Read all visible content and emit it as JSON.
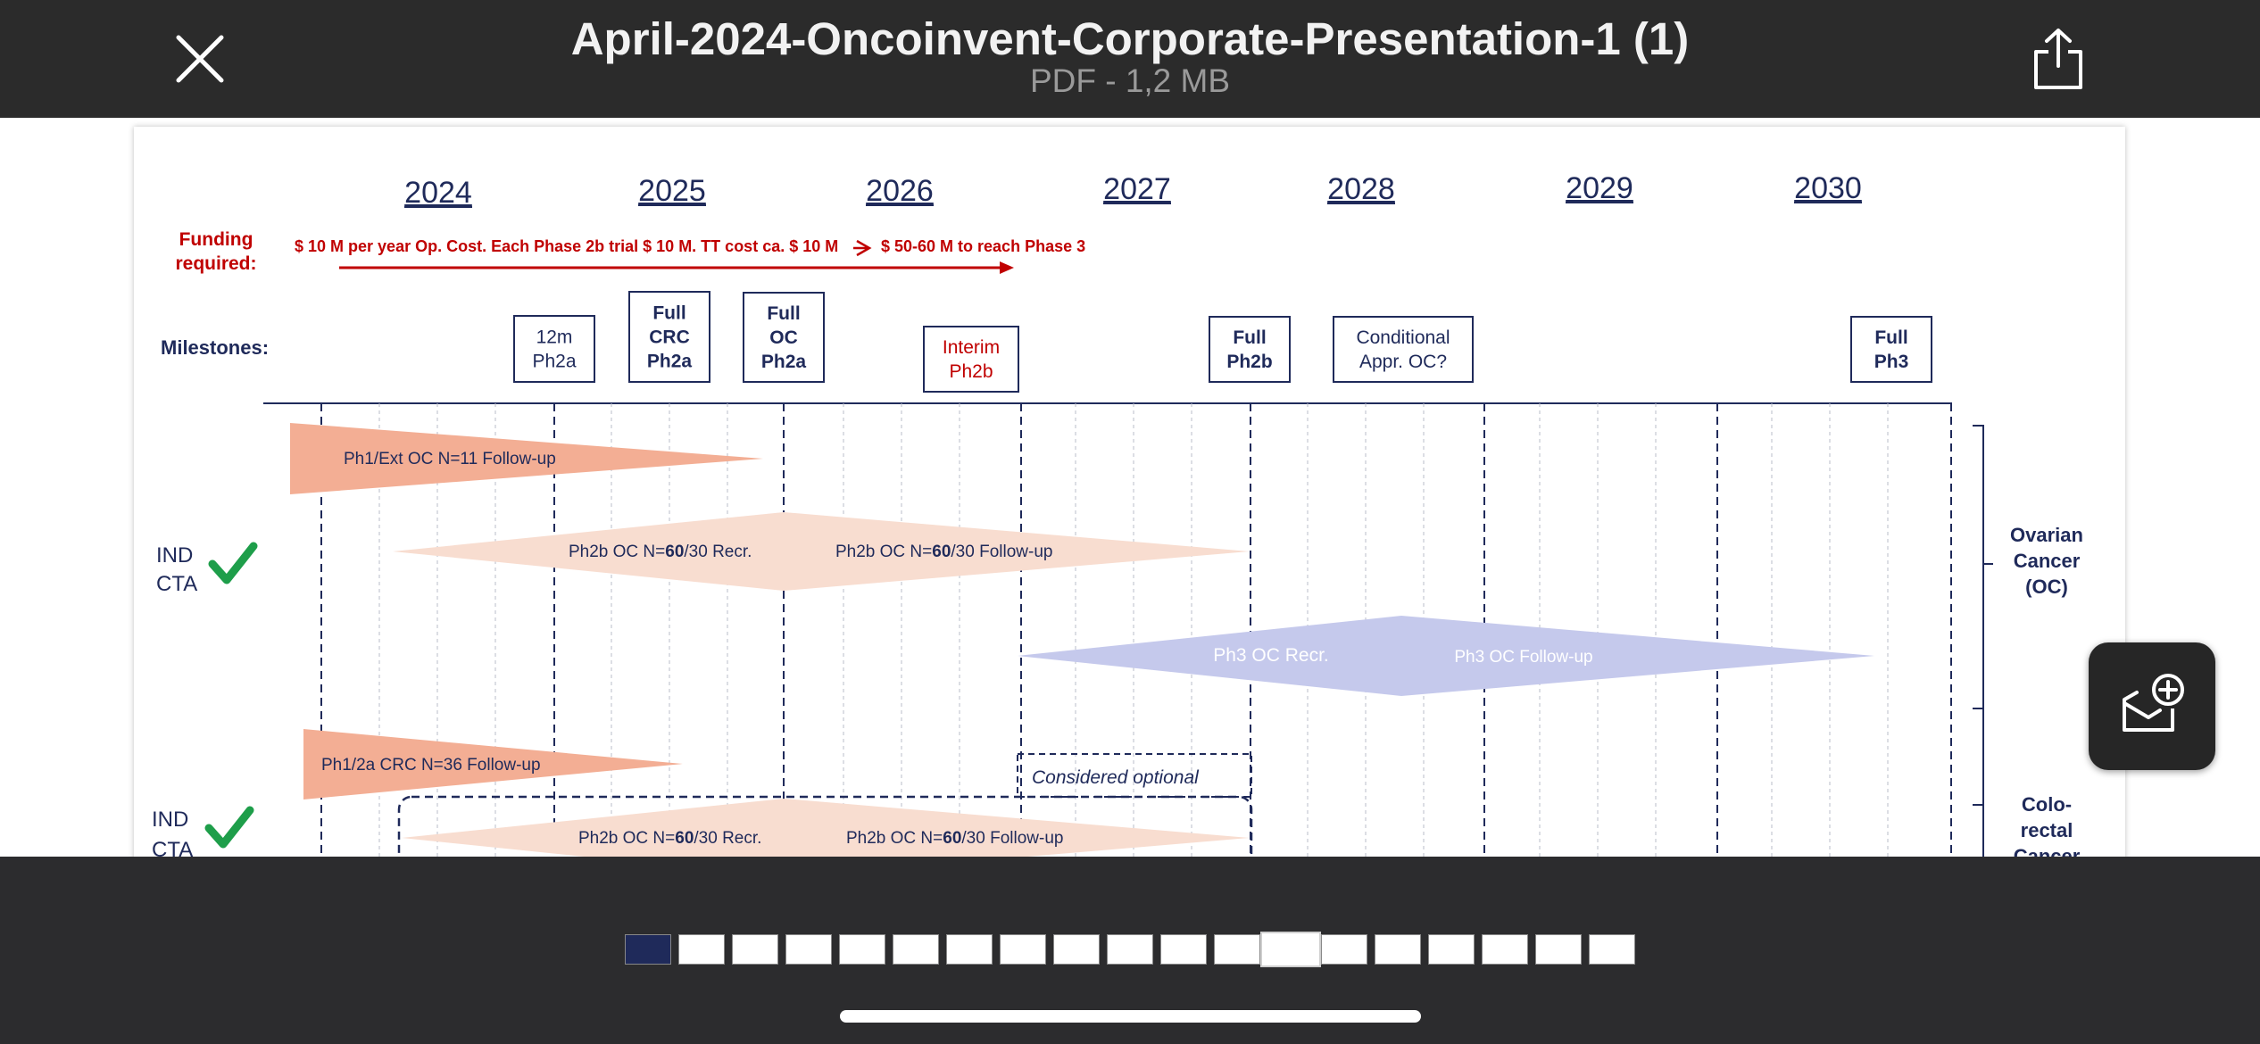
{
  "header": {
    "title": "April-2024-Oncoinvent-Corporate-Presentation-1 (1)",
    "subtitle": "PDF - 1,2 MB"
  },
  "icons": {
    "close": "close-icon",
    "share": "share-icon",
    "fab": "envelope-plus-icon"
  },
  "slide": {
    "years": [
      "2024",
      "2025",
      "2026",
      "2027",
      "2028",
      "2029",
      "2030"
    ],
    "funding_label_1": "Funding",
    "funding_label_2": "required:",
    "funding_text_1": "$ 10 M per year Op. Cost. Each Phase 2b trial $ 10 M. TT cost ca. $ 10 M",
    "funding_text_2": "$ 50-60 M to reach Phase 3",
    "milestones_label": "Milestones:",
    "milestones": [
      {
        "lines": [
          "12m",
          "Ph2a"
        ],
        "bold": false,
        "color": "#1f2a5a"
      },
      {
        "lines": [
          "Full",
          "CRC",
          "Ph2a"
        ],
        "bold": true,
        "color": "#1f2a5a"
      },
      {
        "lines": [
          "Full",
          "OC",
          "Ph2a"
        ],
        "bold": true,
        "color": "#1f2a5a"
      },
      {
        "lines": [
          "Interim",
          "Ph2b"
        ],
        "bold": false,
        "color": "#c00000"
      },
      {
        "lines": [
          "Full",
          "Ph2b"
        ],
        "bold": true,
        "color": "#1f2a5a"
      },
      {
        "lines": [
          "Conditional",
          "Appr. OC?"
        ],
        "bold": false,
        "color": "#1f2a5a"
      },
      {
        "lines": [
          "Full",
          "Ph3"
        ],
        "bold": true,
        "color": "#1f2a5a"
      }
    ],
    "bars": {
      "oc_followup": "Ph1/Ext OC N=11  Follow-up",
      "ph2b_oc_recr_a": "Ph2b OC N=",
      "ph2b_oc_recr_b": "60",
      "ph2b_oc_recr_c": "/30 Recr.",
      "ph2b_oc_fu_a": "Ph2b OC N=",
      "ph2b_oc_fu_b": "60",
      "ph2b_oc_fu_c": "/30 Follow-up",
      "ph3_recr": "Ph3 OC Recr.",
      "ph3_fu": "Ph3 OC  Follow-up",
      "crc_followup": "Ph1/2a CRC N=36 Follow-up",
      "considered_optional": "Considered optional",
      "ph2b_crc_recr_a": "Ph2b OC N=",
      "ph2b_crc_recr_b": "60",
      "ph2b_crc_recr_c": "/30 Recr.",
      "ph2b_crc_fu_a": "Ph2b OC N=",
      "ph2b_crc_fu_b": "60",
      "ph2b_crc_fu_c": "/30 Follow-up"
    },
    "ind_1": "IND",
    "cta_1": "CTA",
    "ind_2": "IND",
    "cta_2": "CTA",
    "ovarian": [
      "Ovarian",
      "Cancer",
      "(OC)"
    ],
    "colorectal": [
      "Colo-",
      "rectal",
      "Cancer"
    ],
    "colors": {
      "navy": "#1f2a5a",
      "red": "#c00000",
      "salmon": "#f3ae94",
      "peach": "#f8ddd0",
      "lavender": "#c5c9ec",
      "green": "#1e9e4a"
    }
  },
  "thumbnails": {
    "count": 19,
    "active_index": 12
  }
}
